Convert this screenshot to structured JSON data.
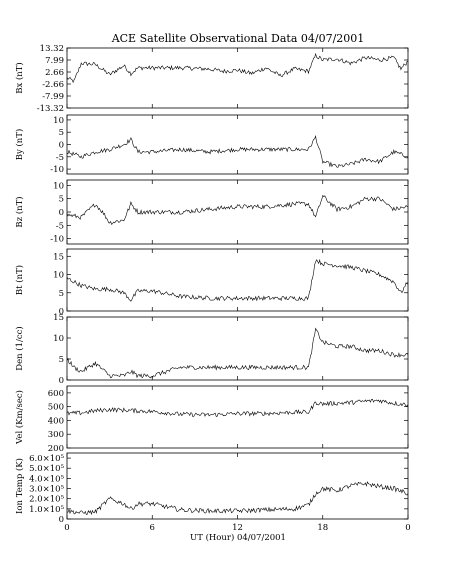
{
  "title": "ACE Satellite Observational Data   04/07/2001",
  "chart_data": [
    {
      "type": "line",
      "ylabel": "Bx (nT)",
      "ylim": [
        -13.32,
        13.32
      ],
      "yticks": [
        "13.32",
        "7.99",
        "2.66",
        "-2.66",
        "-7.99",
        "-13.32"
      ],
      "yticks_values": [
        13.32,
        7.99,
        2.66,
        -2.66,
        -7.99,
        -13.32
      ],
      "xlim": [
        0,
        24
      ],
      "x": [
        0,
        0.5,
        1,
        2,
        3,
        4,
        4.5,
        5,
        6,
        8,
        10,
        11,
        12,
        13,
        14,
        15,
        16,
        17,
        17.5,
        18,
        19,
        20,
        21,
        22,
        23,
        23.5,
        24
      ],
      "values": [
        0,
        -1.5,
        6.5,
        6,
        1.5,
        5.5,
        2,
        4.5,
        4.5,
        4.5,
        4,
        3,
        3.5,
        2,
        4.5,
        1,
        4,
        3,
        10,
        8,
        8.5,
        6.5,
        9,
        8,
        9,
        4,
        7.5
      ]
    },
    {
      "type": "line",
      "ylabel": "By (nT)",
      "ylim": [
        -12,
        12
      ],
      "yticks": [
        "10",
        "5",
        "0",
        "-5",
        "-10"
      ],
      "yticks_values": [
        10,
        5,
        0,
        -5,
        -10
      ],
      "xlim": [
        0,
        24
      ],
      "x": [
        0,
        1,
        2,
        3,
        4,
        4.5,
        5,
        6,
        8,
        10,
        12,
        14,
        16,
        17,
        17.5,
        18,
        19,
        20,
        21,
        22,
        23,
        24
      ],
      "values": [
        -3,
        -5,
        -3,
        -2,
        0,
        2,
        -3,
        -3,
        -2,
        -3,
        -2,
        -2,
        -2,
        -2,
        3,
        -7,
        -9,
        -8,
        -6,
        -7,
        -3,
        -5
      ]
    },
    {
      "type": "line",
      "ylabel": "Bz (nT)",
      "ylim": [
        -12,
        12
      ],
      "yticks": [
        "10",
        "5",
        "0",
        "-5",
        "-10"
      ],
      "yticks_values": [
        10,
        5,
        0,
        -5,
        -10
      ],
      "xlim": [
        0,
        24
      ],
      "x": [
        0,
        1,
        2,
        2.5,
        3,
        4,
        4.5,
        5,
        6,
        8,
        10,
        12,
        14,
        16,
        17,
        17.5,
        18,
        19,
        20,
        21,
        22,
        23,
        24
      ],
      "values": [
        -1,
        -2,
        3,
        0,
        -4,
        -3,
        3,
        0,
        0,
        0,
        1,
        2,
        2,
        3,
        3,
        -2,
        6,
        1,
        2,
        5,
        5,
        1,
        2
      ]
    },
    {
      "type": "line",
      "ylabel": "Bt (nT)",
      "ylim": [
        0,
        17
      ],
      "yticks": [
        "15",
        "10",
        "5",
        "0"
      ],
      "yticks_values": [
        15,
        10,
        5,
        0
      ],
      "xlim": [
        0,
        24
      ],
      "x": [
        0,
        0.5,
        1,
        2,
        3,
        4,
        4.5,
        5,
        6,
        8,
        10,
        12,
        14,
        16,
        17,
        17.5,
        18,
        19,
        20,
        21,
        22,
        23,
        23.5,
        24
      ],
      "values": [
        9,
        8,
        7,
        6,
        6,
        5,
        3,
        5.5,
        5.5,
        4,
        3.5,
        3.5,
        3.5,
        3.5,
        3.5,
        14,
        13,
        12.5,
        12,
        11,
        10,
        8,
        5,
        8
      ]
    },
    {
      "type": "line",
      "ylabel": "Den (1/cc)",
      "ylim": [
        0,
        15
      ],
      "yticks": [
        "15",
        "10",
        "5",
        "0"
      ],
      "yticks_values": [
        15,
        10,
        5,
        0
      ],
      "xlim": [
        0,
        24
      ],
      "x": [
        0,
        0.5,
        1,
        2,
        3,
        4,
        4.5,
        5,
        6,
        8,
        10,
        12,
        14,
        16,
        17,
        17.5,
        18,
        19,
        20,
        21,
        22,
        23,
        24
      ],
      "values": [
        5,
        3,
        2,
        4,
        1,
        1,
        2,
        1,
        1,
        3,
        3,
        3,
        3,
        3,
        3,
        12,
        9,
        8,
        8,
        7,
        7,
        6,
        6
      ]
    },
    {
      "type": "line",
      "ylabel": "Vel (Km/sec)",
      "ylim": [
        200,
        650
      ],
      "yticks": [
        "600",
        "500",
        "400",
        "300",
        "200"
      ],
      "yticks_values": [
        600,
        500,
        400,
        300,
        200
      ],
      "xlim": [
        0,
        24
      ],
      "x": [
        0,
        1,
        2,
        3,
        4,
        5,
        6,
        8,
        10,
        12,
        14,
        16,
        17,
        17.5,
        18,
        19,
        20,
        21,
        22,
        23,
        24
      ],
      "values": [
        450,
        455,
        470,
        480,
        475,
        470,
        465,
        445,
        440,
        450,
        450,
        460,
        460,
        530,
        520,
        525,
        530,
        540,
        545,
        525,
        515
      ]
    },
    {
      "type": "line",
      "ylabel": "Ion Temp (K)",
      "ylim": [
        0,
        650000
      ],
      "yticks": [
        "6.0×10⁵",
        "5.0×10⁵",
        "4.0×10⁵",
        "3.0×10⁵",
        "2.0×10⁵",
        "1.0×10⁵",
        "0"
      ],
      "yticks_values": [
        600000,
        500000,
        400000,
        300000,
        200000,
        100000,
        0
      ],
      "xlim": [
        0,
        24
      ],
      "x": [
        0,
        1,
        2,
        3,
        4,
        4.5,
        5,
        6,
        8,
        10,
        12,
        14,
        16,
        17,
        17.5,
        18,
        19,
        20,
        21,
        22,
        23,
        24
      ],
      "values": [
        80000,
        60000,
        70000,
        200000,
        150000,
        100000,
        150000,
        150000,
        90000,
        80000,
        80000,
        90000,
        100000,
        140000,
        250000,
        300000,
        280000,
        330000,
        350000,
        320000,
        300000,
        250000
      ]
    }
  ],
  "xaxis": {
    "ticks": [
      "0",
      "6",
      "12",
      "18",
      "0"
    ],
    "ticks_values": [
      0,
      6,
      12,
      18,
      24
    ],
    "label": "UT (Hour)   04/07/2001"
  }
}
